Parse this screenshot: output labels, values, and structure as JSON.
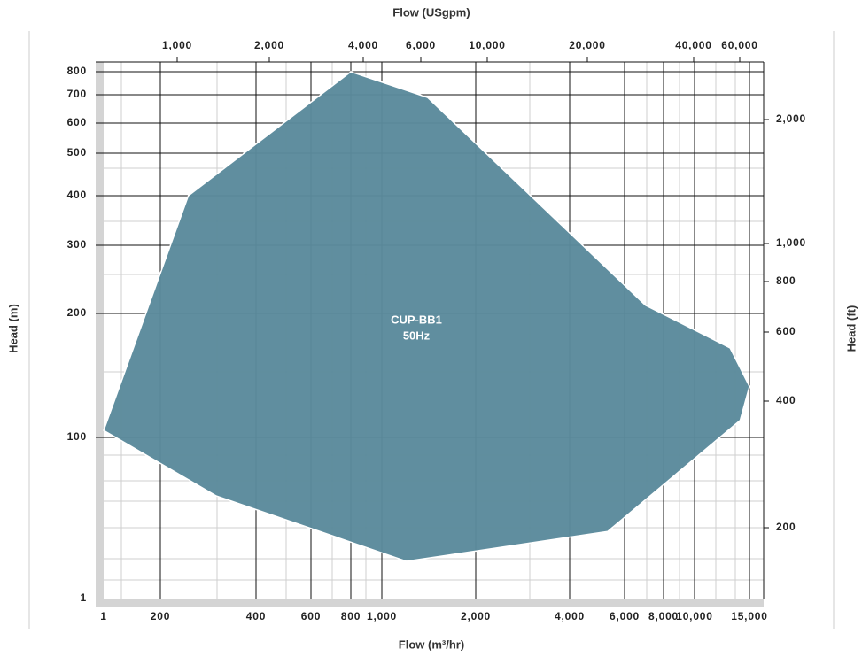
{
  "chart_data": {
    "type": "area",
    "title": "Flow (USgpm)",
    "x_label": "Flow (m³/hr)",
    "y_label": "Head (m)",
    "y2_label": "Head (ft)",
    "annotation": [
      "CUP-BB1",
      "50Hz"
    ],
    "xticks": [
      1,
      200,
      400,
      600,
      800,
      {
        "value": 1000,
        "label": "1,000"
      },
      {
        "value": 2000,
        "label": "2,000"
      },
      {
        "value": 4000,
        "label": "4,000"
      },
      {
        "value": 6000,
        "label": "6,000"
      },
      {
        "value": 8000,
        "label": "8,000"
      },
      {
        "value": 10000,
        "label": "10,000"
      },
      {
        "value": 15000,
        "label": "15,000"
      }
    ],
    "yticks": [
      1,
      100,
      200,
      300,
      400,
      500,
      600,
      700,
      800
    ],
    "x2ticks": [
      {
        "value": 1000,
        "label": "1,000"
      },
      {
        "value": 2000,
        "label": "2,000"
      },
      {
        "value": 4000,
        "label": "4,000"
      },
      {
        "value": 6000,
        "label": "6,000"
      },
      {
        "value": 10000,
        "label": "10,000"
      },
      {
        "value": 20000,
        "label": "20,000"
      },
      {
        "value": 40000,
        "label": "40,000"
      },
      {
        "value": 60000,
        "label": "60,000"
      }
    ],
    "y2ticks": [
      200,
      400,
      600,
      800,
      {
        "value": 1000,
        "label": "1,000"
      },
      {
        "value": 2000,
        "label": "2,000"
      }
    ],
    "grid": true,
    "series": [
      {
        "color": "#5b8a9c",
        "x": [
          1,
          245,
          800,
          1400,
          7000,
          13000,
          15000,
          14000,
          5300,
          1200,
          300
        ],
        "values": [
          104,
          400,
          800,
          690,
          210,
          165,
          133,
          110,
          6.8,
          2.9,
          18.8
        ]
      }
    ]
  }
}
